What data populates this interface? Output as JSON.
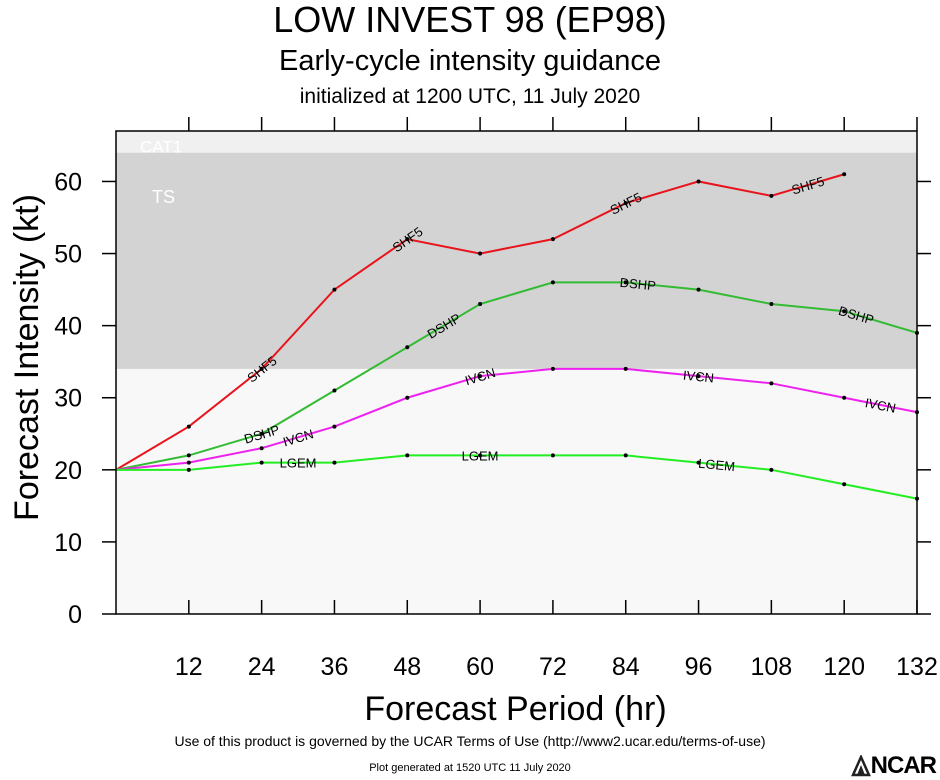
{
  "title": "LOW INVEST 98 (EP98)",
  "subtitle": "Early-cycle intensity guidance",
  "initialized": "initialized at 1200 UTC, 11 July 2020",
  "footer": {
    "terms": "Use of this product is governed by the UCAR Terms of Use (http://www2.ucar.edu/terms-of-use)",
    "generated": "Plot generated at 1520 UTC   11 July 2020",
    "logo": "NCAR"
  },
  "colors": {
    "band_ts": "#d3d3d3",
    "band_cat1": "#f0f0f0",
    "band_lower": "#f8f8f8",
    "SHF5": "#e8141c",
    "DSHP": "#33bb33",
    "IVCN": "#ee22ee",
    "LGEM": "#22ee22"
  },
  "chart_data": {
    "type": "line",
    "xlabel": "Forecast Period (hr)",
    "ylabel": "Forecast Intensity (kt)",
    "xlim": [
      0,
      132
    ],
    "ylim": [
      0,
      67
    ],
    "xticks": [
      12,
      24,
      36,
      48,
      60,
      72,
      84,
      96,
      108,
      120,
      132
    ],
    "yticks": [
      0,
      10,
      20,
      30,
      40,
      50,
      60
    ],
    "bands": [
      {
        "label": "TS",
        "from": 34,
        "to": 64
      },
      {
        "label": "CAT1",
        "from": 64,
        "to": 67
      }
    ],
    "series": [
      {
        "name": "SHF5",
        "x": [
          0,
          12,
          24,
          36,
          48,
          60,
          72,
          84,
          96,
          108,
          120
        ],
        "values": [
          20,
          26,
          34,
          45,
          52,
          50,
          52,
          57,
          60,
          58,
          61
        ],
        "label_x": [
          24,
          48,
          84,
          114
        ]
      },
      {
        "name": "DSHP",
        "x": [
          0,
          12,
          24,
          36,
          48,
          60,
          72,
          84,
          96,
          108,
          120,
          132
        ],
        "values": [
          20,
          22,
          25,
          31,
          37,
          43,
          46,
          46,
          45,
          43,
          42,
          39
        ],
        "label_x": [
          24,
          54,
          86,
          122
        ]
      },
      {
        "name": "IVCN",
        "x": [
          0,
          12,
          24,
          36,
          48,
          60,
          72,
          84,
          96,
          108,
          120,
          132
        ],
        "values": [
          20,
          21,
          23,
          26,
          30,
          33,
          34,
          34,
          33,
          32,
          30,
          28
        ],
        "label_x": [
          30,
          60,
          96,
          126
        ]
      },
      {
        "name": "LGEM",
        "x": [
          0,
          12,
          24,
          36,
          48,
          60,
          72,
          84,
          96,
          108,
          120,
          132
        ],
        "values": [
          20,
          20,
          21,
          21,
          22,
          22,
          22,
          22,
          21,
          20,
          18,
          16
        ],
        "label_x": [
          30,
          60,
          99
        ]
      }
    ]
  }
}
